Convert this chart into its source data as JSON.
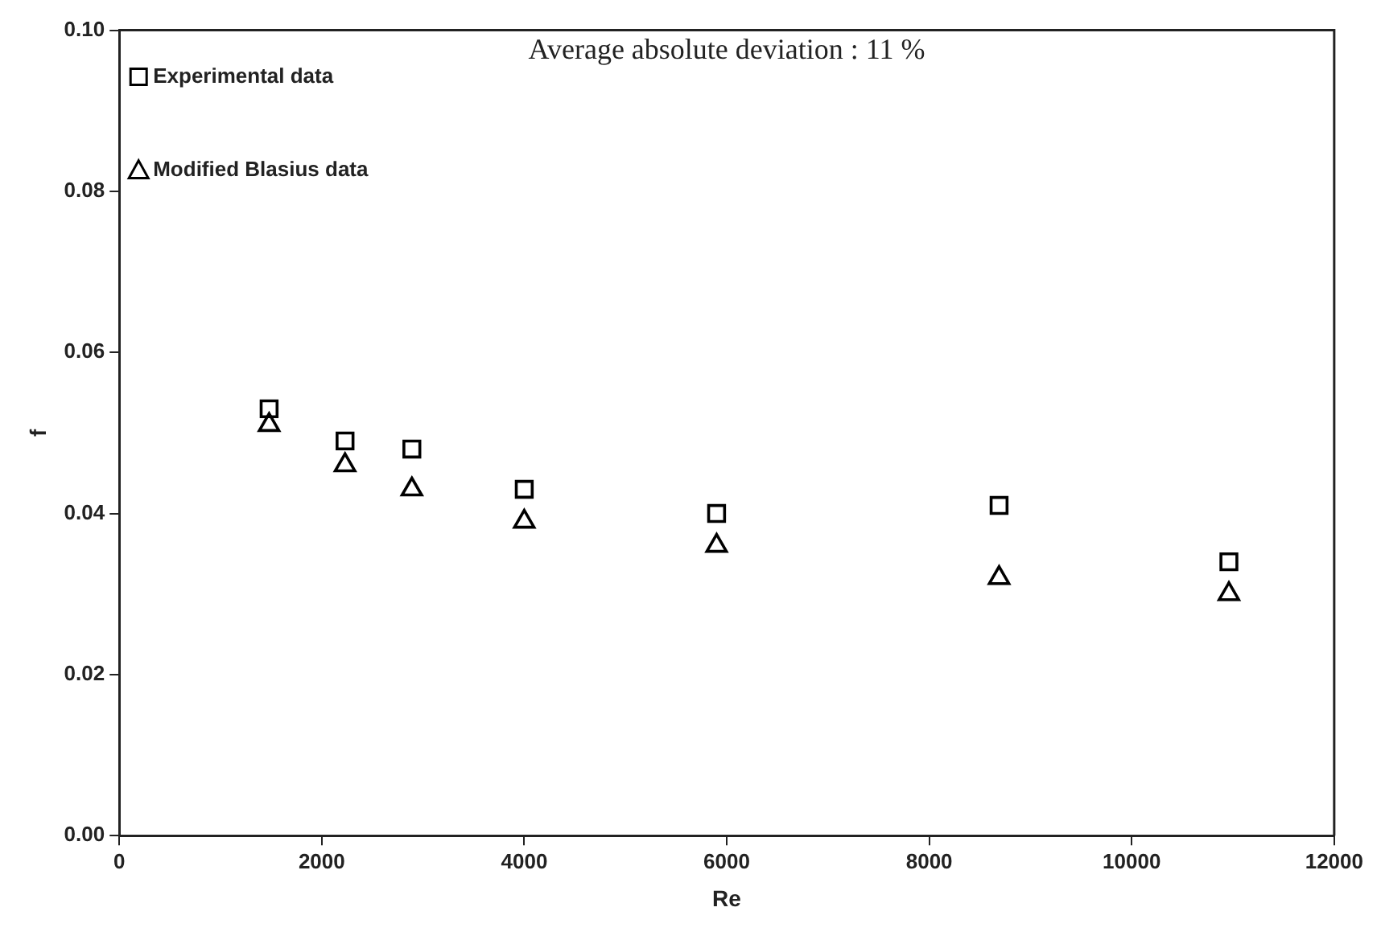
{
  "chart_data": {
    "type": "scatter",
    "xlabel": "Re",
    "ylabel": "f",
    "annotations": [
      "Average absolute deviation : 11 %"
    ],
    "series": [
      {
        "name": "Experimental data",
        "color": "#000000",
        "marker": "square",
        "x": [
          1480,
          2230,
          2890,
          4000,
          5900,
          8690,
          10960
        ],
        "values": [
          0.053,
          0.049,
          0.048,
          0.043,
          0.04,
          0.041,
          0.034
        ]
      },
      {
        "name": "Modified Blasius data",
        "color": "#000000",
        "marker": "triangle",
        "x": [
          1480,
          2230,
          2890,
          4000,
          5900,
          8690,
          10960
        ],
        "values": [
          0.051,
          0.046,
          0.043,
          0.039,
          0.036,
          0.032,
          0.03
        ]
      }
    ],
    "xlim": [
      0,
      12000
    ],
    "xticks": [
      0,
      2000,
      4000,
      6000,
      8000,
      10000,
      12000
    ],
    "ylim": [
      0,
      0.1
    ],
    "yticks": [
      {
        "value": 0,
        "label": "0.00"
      },
      {
        "value": 0.02,
        "label": "0.02"
      },
      {
        "value": 0.04,
        "label": "0.04"
      },
      {
        "value": 0.06,
        "label": "0.06"
      },
      {
        "value": 0.08,
        "label": "0.08"
      },
      {
        "value": 0.1,
        "label": "0.10"
      }
    ],
    "grid": false,
    "legend": "top left"
  }
}
